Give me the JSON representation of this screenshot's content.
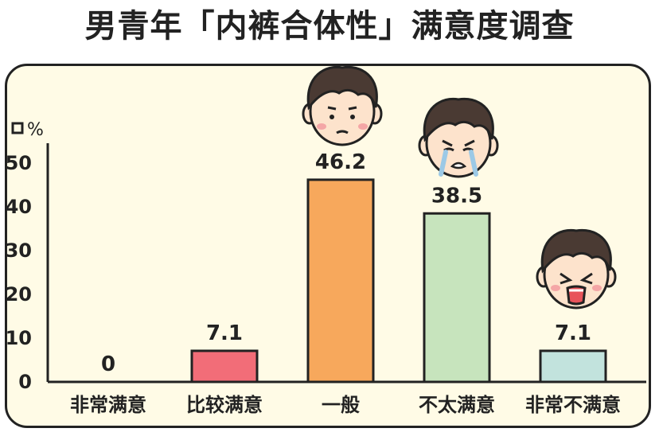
{
  "title": "男青年「内裤合体性」满意度调查",
  "chart_data": {
    "type": "bar",
    "title": "男青年「内裤合体性」满意度调查",
    "y_unit": "%",
    "ylim": [
      0,
      55
    ],
    "yticks": [
      0,
      10,
      20,
      30,
      40,
      50
    ],
    "grid": false,
    "categories": [
      "非常满意",
      "比较满意",
      "一般",
      "不太满意",
      "非常不满意"
    ],
    "values": [
      0,
      7.1,
      46.2,
      38.5,
      7.1
    ],
    "value_labels": [
      "0",
      "7.1",
      "46.2",
      "38.5",
      "7.1"
    ],
    "colors": [
      "#f26d78",
      "#f26d78",
      "#f7a85c",
      "#c7e4bd",
      "#c2e3dd"
    ],
    "annotations": [
      "face-neutral-icon",
      "face-crying-icon",
      "face-angry-icon"
    ]
  }
}
